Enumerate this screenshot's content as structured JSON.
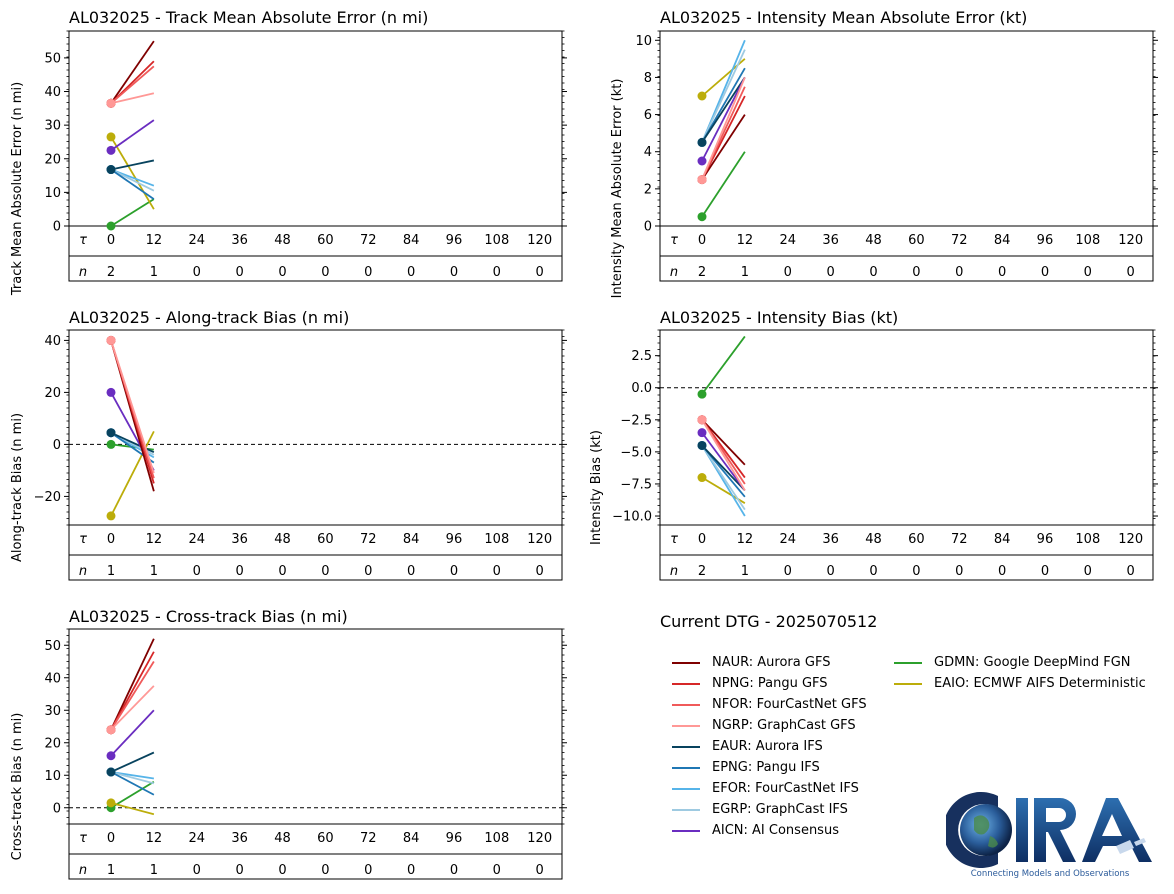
{
  "chart_data": [
    {
      "type": "line",
      "title": "AL032025 - Track Mean Absolute Error (n mi)",
      "ylabel": "Track Mean Absolute Error (n mi)",
      "ylim": [
        0,
        58
      ],
      "yticks": [
        0,
        10,
        20,
        30,
        40,
        50
      ],
      "ytick_labels": [
        "0",
        "10",
        "20",
        "30",
        "40",
        "50"
      ],
      "zero_line": false,
      "tau_label": "τ",
      "n_label": "n",
      "taus": [
        "0",
        "12",
        "24",
        "36",
        "48",
        "60",
        "72",
        "84",
        "96",
        "108",
        "120"
      ],
      "counts": [
        "2",
        "1",
        "0",
        "0",
        "0",
        "0",
        "0",
        "0",
        "0",
        "0",
        "0"
      ],
      "series": [
        {
          "name": "NAUR",
          "values": [
            36.5,
            55
          ]
        },
        {
          "name": "NPNG",
          "values": [
            36.5,
            49
          ]
        },
        {
          "name": "NFOR",
          "values": [
            36.5,
            47.5
          ]
        },
        {
          "name": "NGRP",
          "values": [
            36.5,
            39.5
          ]
        },
        {
          "name": "EAUR",
          "values": [
            16.8,
            19.5
          ]
        },
        {
          "name": "EPNG",
          "values": [
            16.8,
            8
          ]
        },
        {
          "name": "EFOR",
          "values": [
            16.8,
            12
          ]
        },
        {
          "name": "EGRP",
          "values": [
            16.8,
            10.5
          ]
        },
        {
          "name": "AICN",
          "values": [
            22.5,
            31.5
          ]
        },
        {
          "name": "GDMN",
          "values": [
            0,
            8
          ]
        },
        {
          "name": "EAIO",
          "values": [
            26.5,
            5
          ]
        }
      ]
    },
    {
      "type": "line",
      "title": "AL032025 - Intensity Mean Absolute Error (kt)",
      "ylabel": "Intensity Mean Absolute Error (kt)",
      "ylim": [
        0,
        10.5
      ],
      "yticks": [
        0,
        2,
        4,
        6,
        8,
        10
      ],
      "ytick_labels": [
        "0",
        "2",
        "4",
        "6",
        "8",
        "10"
      ],
      "zero_line": false,
      "tau_label": "τ",
      "n_label": "n",
      "taus": [
        "0",
        "12",
        "24",
        "36",
        "48",
        "60",
        "72",
        "84",
        "96",
        "108",
        "120"
      ],
      "counts": [
        "2",
        "1",
        "0",
        "0",
        "0",
        "0",
        "0",
        "0",
        "0",
        "0",
        "0"
      ],
      "series": [
        {
          "name": "NAUR",
          "values": [
            2.5,
            6
          ]
        },
        {
          "name": "NPNG",
          "values": [
            2.5,
            7
          ]
        },
        {
          "name": "NFOR",
          "values": [
            2.5,
            7.5
          ]
        },
        {
          "name": "NGRP",
          "values": [
            2.5,
            8
          ]
        },
        {
          "name": "EAUR",
          "values": [
            4.5,
            8
          ]
        },
        {
          "name": "EPNG",
          "values": [
            4.5,
            8.5
          ]
        },
        {
          "name": "EFOR",
          "values": [
            4.5,
            10
          ]
        },
        {
          "name": "EGRP",
          "values": [
            4.5,
            9.5
          ]
        },
        {
          "name": "AICN",
          "values": [
            3.5,
            8
          ]
        },
        {
          "name": "GDMN",
          "values": [
            0.5,
            4
          ]
        },
        {
          "name": "EAIO",
          "values": [
            7,
            9
          ]
        }
      ]
    },
    {
      "type": "line",
      "title": "AL032025 - Along-track Bias (n mi)",
      "ylabel": "Along-track Bias (n mi)",
      "ylim": [
        -31,
        44
      ],
      "yticks": [
        -20,
        0,
        20,
        40
      ],
      "ytick_labels": [
        "−20",
        "0",
        "20",
        "40"
      ],
      "zero_line": true,
      "tau_label": "τ",
      "n_label": "n",
      "taus": [
        "0",
        "12",
        "24",
        "36",
        "48",
        "60",
        "72",
        "84",
        "96",
        "108",
        "120"
      ],
      "counts": [
        "1",
        "1",
        "0",
        "0",
        "0",
        "0",
        "0",
        "0",
        "0",
        "0",
        "0"
      ],
      "series": [
        {
          "name": "NAUR",
          "values": [
            40,
            -18
          ]
        },
        {
          "name": "NPNG",
          "values": [
            40,
            -15
          ]
        },
        {
          "name": "NFOR",
          "values": [
            40,
            -13
          ]
        },
        {
          "name": "NGRP",
          "values": [
            40,
            -11
          ]
        },
        {
          "name": "EAUR",
          "values": [
            4.5,
            -3
          ]
        },
        {
          "name": "EPNG",
          "values": [
            4.5,
            -7
          ]
        },
        {
          "name": "EFOR",
          "values": [
            4.5,
            -5
          ]
        },
        {
          "name": "EGRP",
          "values": [
            4.5,
            -4
          ]
        },
        {
          "name": "AICN",
          "values": [
            20,
            -10
          ]
        },
        {
          "name": "GDMN",
          "values": [
            0,
            -2
          ]
        },
        {
          "name": "EAIO",
          "values": [
            -27.5,
            5
          ]
        }
      ]
    },
    {
      "type": "line",
      "title": "AL032025 - Intensity Bias (kt)",
      "ylabel": "Intensity Bias (kt)",
      "ylim": [
        -10.7,
        4.5
      ],
      "yticks": [
        2.5,
        0,
        -2.5,
        -5,
        -7.5,
        -10
      ],
      "ytick_labels": [
        "2.5",
        "0.0",
        "−2.5",
        "−5.0",
        "−7.5",
        "−10.0"
      ],
      "zero_line": true,
      "tau_label": "τ",
      "n_label": "n",
      "taus": [
        "0",
        "12",
        "24",
        "36",
        "48",
        "60",
        "72",
        "84",
        "96",
        "108",
        "120"
      ],
      "counts": [
        "2",
        "1",
        "0",
        "0",
        "0",
        "0",
        "0",
        "0",
        "0",
        "0",
        "0"
      ],
      "series": [
        {
          "name": "NAUR",
          "values": [
            -2.5,
            -6
          ]
        },
        {
          "name": "NPNG",
          "values": [
            -2.5,
            -7
          ]
        },
        {
          "name": "NFOR",
          "values": [
            -2.5,
            -7.5
          ]
        },
        {
          "name": "NGRP",
          "values": [
            -2.5,
            -8
          ]
        },
        {
          "name": "EAUR",
          "values": [
            -4.5,
            -8
          ]
        },
        {
          "name": "EPNG",
          "values": [
            -4.5,
            -8.5
          ]
        },
        {
          "name": "EFOR",
          "values": [
            -4.5,
            -10
          ]
        },
        {
          "name": "EGRP",
          "values": [
            -4.5,
            -9.5
          ]
        },
        {
          "name": "AICN",
          "values": [
            -3.5,
            -8
          ]
        },
        {
          "name": "GDMN",
          "values": [
            -0.5,
            4
          ]
        },
        {
          "name": "EAIO",
          "values": [
            -7,
            -9
          ]
        }
      ]
    },
    {
      "type": "line",
      "title": "AL032025 - Cross-track Bias (n mi)",
      "ylabel": "Cross-track Bias (n mi)",
      "ylim": [
        -5,
        55
      ],
      "yticks": [
        0,
        10,
        20,
        30,
        40,
        50
      ],
      "ytick_labels": [
        "0",
        "10",
        "20",
        "30",
        "40",
        "50"
      ],
      "zero_line": true,
      "tau_label": "τ",
      "n_label": "n",
      "taus": [
        "0",
        "12",
        "24",
        "36",
        "48",
        "60",
        "72",
        "84",
        "96",
        "108",
        "120"
      ],
      "counts": [
        "1",
        "1",
        "0",
        "0",
        "0",
        "0",
        "0",
        "0",
        "0",
        "0",
        "0"
      ],
      "series": [
        {
          "name": "NAUR",
          "values": [
            24,
            52
          ]
        },
        {
          "name": "NPNG",
          "values": [
            24,
            48
          ]
        },
        {
          "name": "NFOR",
          "values": [
            24,
            45
          ]
        },
        {
          "name": "NGRP",
          "values": [
            24,
            37.5
          ]
        },
        {
          "name": "EAUR",
          "values": [
            11,
            17
          ]
        },
        {
          "name": "EPNG",
          "values": [
            11,
            4
          ]
        },
        {
          "name": "EFOR",
          "values": [
            11,
            9
          ]
        },
        {
          "name": "EGRP",
          "values": [
            11,
            7.5
          ]
        },
        {
          "name": "AICN",
          "values": [
            16,
            30
          ]
        },
        {
          "name": "GDMN",
          "values": [
            0,
            8
          ]
        },
        {
          "name": "EAIO",
          "values": [
            1.5,
            -2
          ]
        }
      ]
    }
  ],
  "legend": {
    "title": "Current DTG - 2025070512",
    "entries": [
      {
        "key": "NAUR",
        "label": "NAUR: Aurora GFS",
        "color": "#7f0000"
      },
      {
        "key": "NPNG",
        "label": "NPNG: Pangu GFS",
        "color": "#d62728"
      },
      {
        "key": "NFOR",
        "label": "NFOR: FourCastNet GFS",
        "color": "#f05a5a"
      },
      {
        "key": "NGRP",
        "label": "NGRP: GraphCast GFS",
        "color": "#ff9896"
      },
      {
        "key": "EAUR",
        "label": "EAUR: Aurora IFS",
        "color": "#08435e"
      },
      {
        "key": "EPNG",
        "label": "EPNG: Pangu IFS",
        "color": "#1f77b4"
      },
      {
        "key": "EFOR",
        "label": "EFOR: FourCastNet IFS",
        "color": "#56b4e9"
      },
      {
        "key": "EGRP",
        "label": "EGRP: GraphCast IFS",
        "color": "#9ecae1"
      },
      {
        "key": "AICN",
        "label": "AICN: AI Consensus",
        "color": "#6a2dc0"
      },
      {
        "key": "GDMN",
        "label": "GDMN: Google DeepMind FGN",
        "color": "#2ca02c"
      },
      {
        "key": "EAIO",
        "label": "EAIO: ECMWF AIFS Deterministic",
        "color": "#bcad0a"
      }
    ]
  },
  "logo": {
    "text": "CIRA",
    "tagline": "Connecting Models and Observations"
  }
}
